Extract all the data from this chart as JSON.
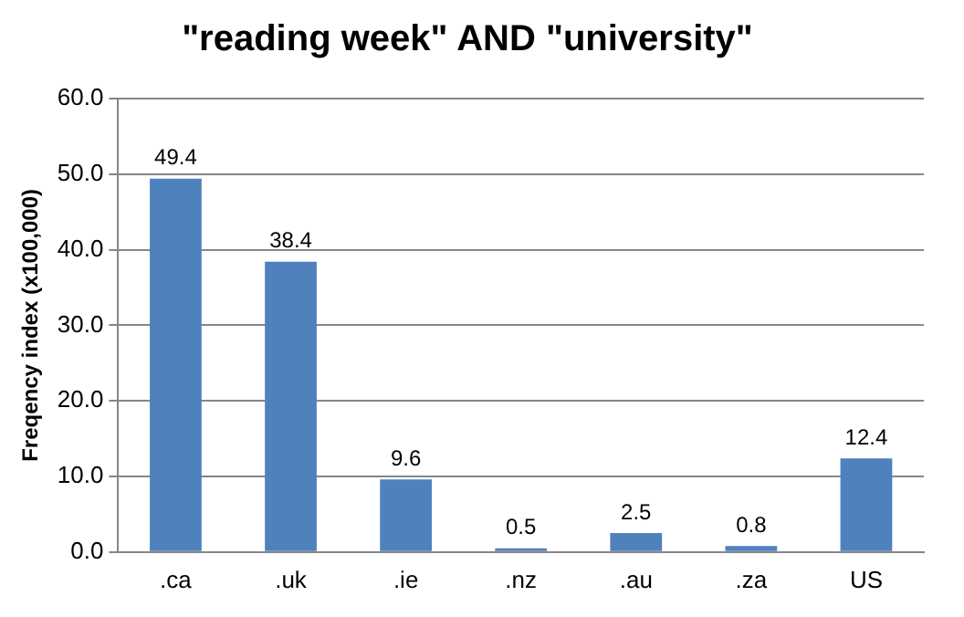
{
  "chart_data": {
    "type": "bar",
    "title": "\"reading week\" AND \"university\"",
    "ylabel": "Freqency index (x100,000)",
    "categories": [
      ".ca",
      ".uk",
      ".ie",
      ".nz",
      ".au",
      ".za",
      "US"
    ],
    "values": [
      49.4,
      38.4,
      9.6,
      0.5,
      2.5,
      0.8,
      12.4
    ],
    "color": "#4f81bd",
    "ylim": [
      0,
      60
    ],
    "yticks": [
      {
        "value": 0,
        "label": "0.0"
      },
      {
        "value": 10,
        "label": "10.0"
      },
      {
        "value": 20,
        "label": "20.0"
      },
      {
        "value": 30,
        "label": "30.0"
      },
      {
        "value": 40,
        "label": "40.0"
      },
      {
        "value": 50,
        "label": "50.0"
      },
      {
        "value": 60,
        "label": "60.0"
      }
    ],
    "grid": "y",
    "data_labels": true,
    "legend": false
  }
}
